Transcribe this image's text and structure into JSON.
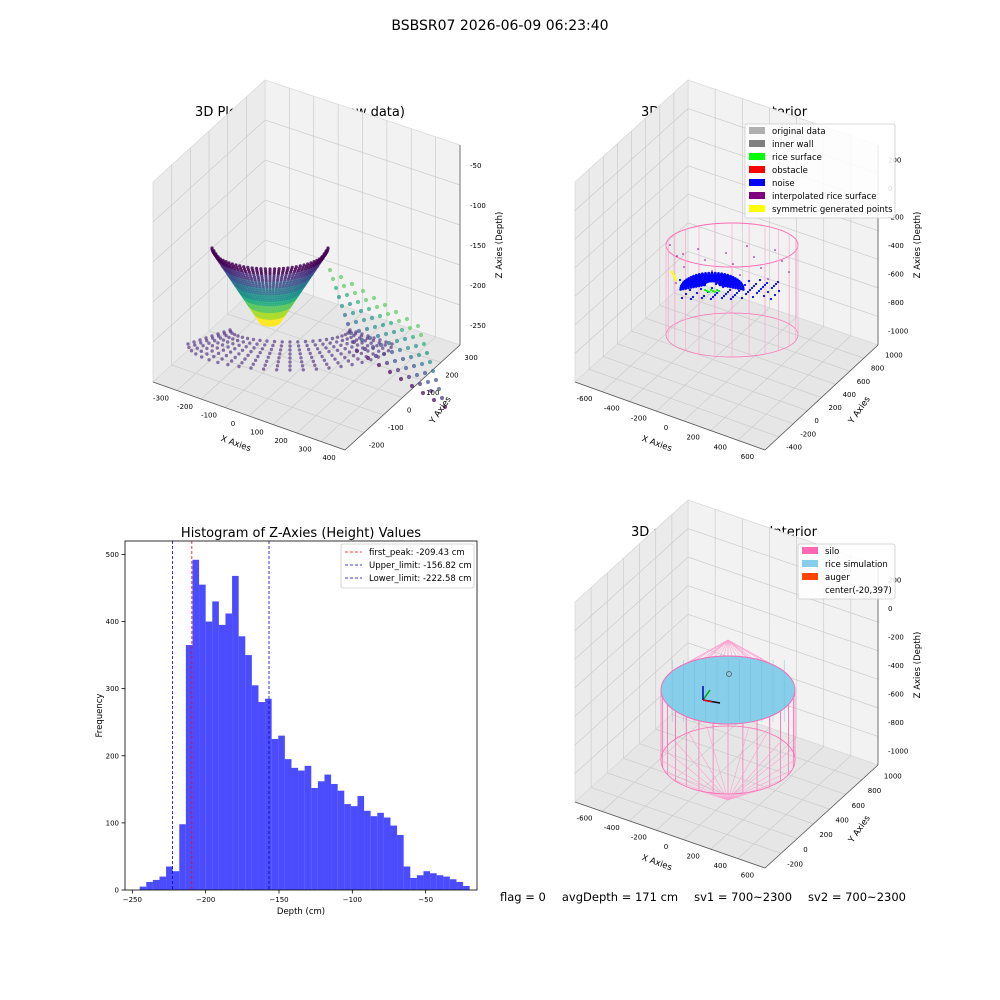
{
  "suptitle": "BSBSR07 2026-06-09 06:23:40",
  "status": {
    "flag": "flag = 0",
    "avg_depth": "avgDepth = 171 cm",
    "sv1": "sv1 = 700~2300",
    "sv2": "sv2 = 700~2300"
  },
  "chart_data": [
    {
      "type": "scatter",
      "title": "3D Plot of Silo Interior(row data)",
      "xlabel": "X Axies",
      "ylabel": "Y Axies",
      "zlabel": "Z Axies (Depth)",
      "xticks": [
        "-300",
        "-200",
        "-100",
        "0",
        "100",
        "200",
        "300",
        "400"
      ],
      "yticks": [
        "-200",
        "-100",
        "0",
        "100",
        "200",
        "300"
      ],
      "zticks": [
        "-250",
        "-200",
        "-150",
        "-100",
        "-50"
      ],
      "colormap": "viridis"
    },
    {
      "type": "scatter",
      "title": "3D classify of Silo Interior",
      "xlabel": "X Axies",
      "ylabel": "Y Axies",
      "zlabel": "Z Axies (Depth)",
      "xticks": [
        "-600",
        "-400",
        "-200",
        "0",
        "200",
        "400",
        "600"
      ],
      "yticks": [
        "-400",
        "-200",
        "0",
        "200",
        "400",
        "600",
        "800",
        "1000"
      ],
      "zticks": [
        "-1000",
        "-800",
        "-600",
        "-400",
        "-200",
        "0",
        "200"
      ],
      "legend": [
        {
          "label": "original data",
          "color": "#b0b0b0"
        },
        {
          "label": "inner wall",
          "color": "#808080"
        },
        {
          "label": "rice surface",
          "color": "#00ff00"
        },
        {
          "label": "obstacle",
          "color": "#ff0000"
        },
        {
          "label": "noise",
          "color": "#0000ff"
        },
        {
          "label": "interpolated rice surface",
          "color": "#800080"
        },
        {
          "label": "symmetric generated points",
          "color": "#ffff00"
        }
      ],
      "legend_position": "top-right"
    },
    {
      "type": "bar",
      "title": "Histogram of Z-Axies (Height) Values",
      "xlabel": "Depth (cm)",
      "ylabel": "Frequency",
      "xlim": [
        -255,
        -15
      ],
      "ylim": [
        0,
        520
      ],
      "xticks": [
        -250,
        -200,
        -150,
        -100,
        -50
      ],
      "yticks": [
        0,
        100,
        200,
        300,
        400,
        500
      ],
      "bin_start": -245,
      "bin_width": 4.5,
      "values": [
        5,
        12,
        15,
        20,
        35,
        28,
        98,
        365,
        492,
        455,
        400,
        430,
        395,
        412,
        468,
        378,
        350,
        305,
        280,
        285,
        225,
        230,
        195,
        182,
        178,
        185,
        152,
        162,
        172,
        158,
        148,
        128,
        125,
        140,
        118,
        110,
        115,
        108,
        96,
        82,
        35,
        18,
        22,
        28,
        25,
        22,
        20,
        16,
        12,
        6
      ],
      "bar_color": "#0000ff",
      "vlines": [
        {
          "label": "first_peak: -209.43 cm",
          "x": -209.43,
          "color": "#ff0000"
        },
        {
          "label": "Upper_limit: -156.82 cm",
          "x": -156.82,
          "color": "#0000cc"
        },
        {
          "label": "Lower_limit: -222.58 cm",
          "x": -222.58,
          "color": "#0000cc"
        }
      ],
      "legend_position": "top-right"
    },
    {
      "type": "scatter",
      "title": "3D simulation of Silo Interior",
      "xlabel": "X Axies",
      "ylabel": "Y Axies",
      "zlabel": "Z Axies (Depth)",
      "xticks": [
        "-600",
        "-400",
        "-200",
        "0",
        "200",
        "400",
        "600"
      ],
      "yticks": [
        "-200",
        "0",
        "200",
        "400",
        "600",
        "800",
        "1000"
      ],
      "zticks": [
        "-1000",
        "-800",
        "-600",
        "-400",
        "-200",
        "0",
        "200"
      ],
      "legend": [
        {
          "label": "silo",
          "color": "#ff69b4"
        },
        {
          "label": "rice simulation",
          "color": "#87ceeb"
        },
        {
          "label": "auger",
          "color": "#ff4500"
        },
        {
          "label": "center(-20,397)",
          "color": ""
        }
      ],
      "legend_position": "top-right"
    }
  ]
}
